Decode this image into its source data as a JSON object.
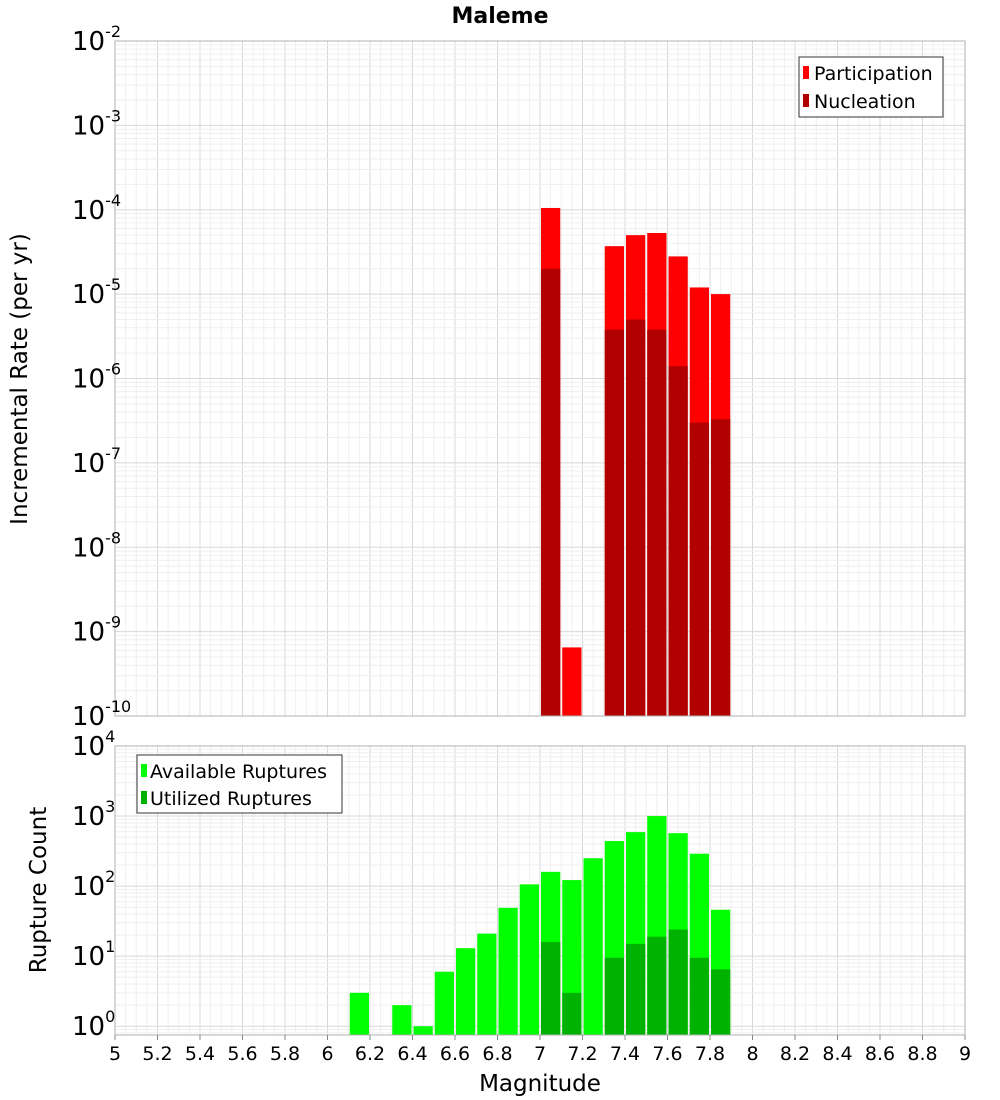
{
  "chart_data": [
    {
      "type": "bar",
      "title": "Maleme",
      "xlabel": "",
      "ylabel": "Incremental Rate (per yr)",
      "y_scale": "log",
      "ylim": [
        1e-10,
        0.01
      ],
      "xlim": [
        5,
        9
      ],
      "grid": true,
      "legend_position": "top-right",
      "y_tick_exponents": [
        -10,
        -9,
        -8,
        -7,
        -6,
        -5,
        -4,
        -3,
        -2
      ],
      "series": [
        {
          "name": "Participation",
          "color": "#ff0000",
          "x": [
            7.05,
            7.15,
            7.35,
            7.45,
            7.55,
            7.65,
            7.75,
            7.85
          ],
          "values": [
            0.000105,
            6.5e-10,
            3.7e-05,
            5e-05,
            5.3e-05,
            2.8e-05,
            1.2e-05,
            1e-05
          ]
        },
        {
          "name": "Nucleation",
          "color": "#b20000",
          "x": [
            7.05,
            7.35,
            7.45,
            7.55,
            7.65,
            7.75,
            7.85
          ],
          "values": [
            2e-05,
            3.8e-06,
            5e-06,
            3.8e-06,
            1.4e-06,
            3e-07,
            3.3e-07
          ]
        }
      ]
    },
    {
      "type": "bar",
      "title": "",
      "xlabel": "Magnitude",
      "ylabel": "Rupture Count",
      "y_scale": "log",
      "ylim": [
        0.75,
        10000
      ],
      "xlim": [
        5,
        9
      ],
      "grid": true,
      "legend_position": "top-left",
      "y_tick_exponents": [
        0,
        1,
        2,
        3,
        4
      ],
      "x_ticks": [
        "5",
        "5.2",
        "5.4",
        "5.6",
        "5.8",
        "6",
        "6.2",
        "6.4",
        "6.6",
        "6.8",
        "7",
        "7.2",
        "7.4",
        "7.6",
        "7.8",
        "8",
        "8.2",
        "8.4",
        "8.6",
        "8.8",
        "9"
      ],
      "series": [
        {
          "name": "Available Ruptures",
          "color": "#00ff00",
          "x": [
            6.15,
            6.35,
            6.45,
            6.55,
            6.65,
            6.75,
            6.85,
            6.95,
            7.05,
            7.15,
            7.25,
            7.35,
            7.45,
            7.55,
            7.65,
            7.75,
            7.85
          ],
          "values": [
            3,
            2,
            1,
            6,
            13,
            21,
            49,
            106,
            160,
            122,
            250,
            440,
            590,
            1000,
            570,
            290,
            46
          ]
        },
        {
          "name": "Utilized Ruptures",
          "color": "#00b200",
          "x": [
            7.05,
            7.15,
            7.35,
            7.45,
            7.55,
            7.65,
            7.75,
            7.85
          ],
          "values": [
            16,
            3,
            9.5,
            15,
            19,
            24,
            9.5,
            6.5
          ]
        }
      ]
    }
  ]
}
